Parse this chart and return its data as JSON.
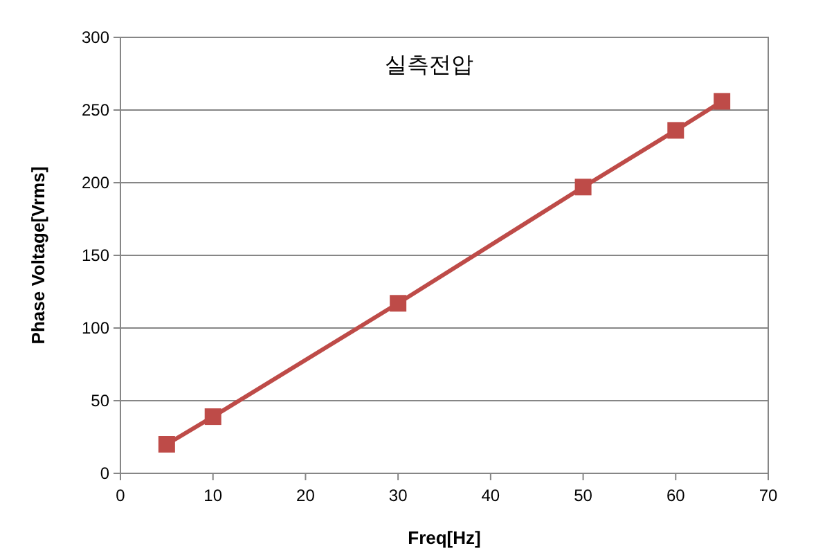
{
  "chart_data": {
    "type": "line",
    "title": "실측전압",
    "xlabel": "Freq[Hz]",
    "ylabel": "Phase Voltage[Vrms]",
    "x": [
      5,
      10,
      30,
      50,
      60,
      65
    ],
    "series": [
      {
        "color": "#be4b48",
        "values": [
          20,
          39,
          117,
          197,
          236,
          256
        ]
      }
    ],
    "xlim": [
      0,
      70
    ],
    "xticks": [
      0,
      10,
      20,
      30,
      40,
      50,
      60,
      70
    ],
    "ylim": [
      0,
      300
    ],
    "yticks": [
      0,
      50,
      100,
      150,
      200,
      250,
      300
    ],
    "grid": "y",
    "marker": "square",
    "line_style": "solid"
  }
}
